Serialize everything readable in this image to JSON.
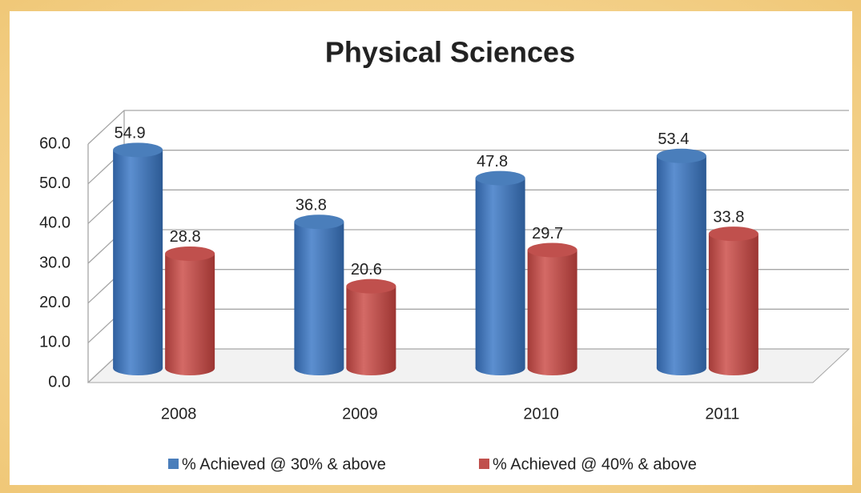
{
  "chart_data": {
    "type": "bar3d",
    "title": "Physical Sciences",
    "categories": [
      "2008",
      "2009",
      "2010",
      "2011"
    ],
    "series": [
      {
        "name": "% Achieved @ 30% & above",
        "color": "#4a7ebb",
        "values": [
          54.9,
          36.8,
          47.8,
          53.4
        ]
      },
      {
        "name": "% Achieved @ 40% & above",
        "color": "#c0504d",
        "values": [
          28.8,
          20.6,
          29.7,
          33.8
        ]
      }
    ],
    "ylim": [
      0,
      60
    ],
    "yticks": [
      {
        "value": 0,
        "label": "0.0"
      },
      {
        "value": 10,
        "label": "10.0"
      },
      {
        "value": 20,
        "label": "20.0"
      },
      {
        "value": 30,
        "label": "30.0"
      },
      {
        "value": 40,
        "label": "40.0"
      },
      {
        "value": 50,
        "label": "50.0"
      },
      {
        "value": 60,
        "label": "60.0"
      }
    ],
    "grid": true,
    "legend": "bottom"
  }
}
